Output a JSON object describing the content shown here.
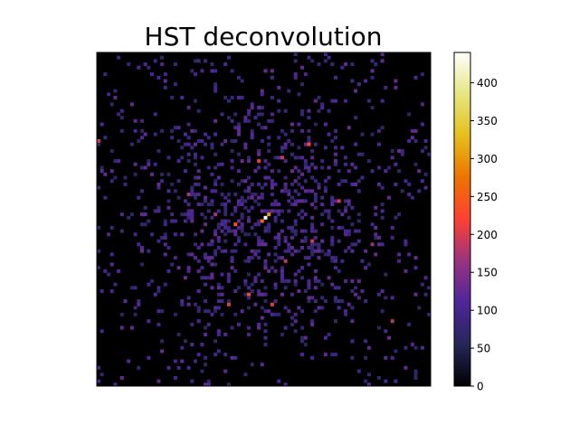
{
  "chart_data": {
    "type": "heatmap",
    "title": "HST deconvolution",
    "xlabel": "",
    "ylabel": "",
    "colormap": "CMRmap",
    "colorbar": {
      "range": [
        0,
        440
      ],
      "ticks": [
        0,
        50,
        100,
        150,
        200,
        250,
        300,
        350,
        400
      ],
      "tick_labels": [
        "0",
        "50",
        "100",
        "150",
        "200",
        "250",
        "300",
        "350",
        "400"
      ]
    },
    "grid_size": [
      100,
      100
    ],
    "background_value": 0,
    "noise_value_range": [
      60,
      130
    ],
    "peaks": [
      {
        "col": 50,
        "row": 49,
        "value": 440
      },
      {
        "col": 51,
        "row": 48,
        "value": 300
      },
      {
        "col": 49,
        "row": 50,
        "value": 260
      },
      {
        "col": 41,
        "row": 51,
        "value": 240
      },
      {
        "col": 64,
        "row": 56,
        "value": 200
      },
      {
        "col": 48,
        "row": 32,
        "value": 210
      },
      {
        "col": 63,
        "row": 27,
        "value": 220
      },
      {
        "col": 55,
        "row": 31,
        "value": 190
      },
      {
        "col": 45,
        "row": 72,
        "value": 230
      },
      {
        "col": 52,
        "row": 75,
        "value": 210
      },
      {
        "col": 39,
        "row": 75,
        "value": 200
      },
      {
        "col": 56,
        "row": 62,
        "value": 180
      },
      {
        "col": 35,
        "row": 48,
        "value": 170
      },
      {
        "col": 72,
        "row": 44,
        "value": 200
      },
      {
        "col": 27,
        "row": 42,
        "value": 170
      },
      {
        "col": 0,
        "row": 26,
        "value": 200
      },
      {
        "col": 88,
        "row": 80,
        "value": 180
      },
      {
        "col": 82,
        "row": 57,
        "value": 160
      }
    ],
    "grid": false,
    "legend": "none"
  },
  "colors": {
    "axes_frame": "#000000",
    "background": "#ffffff"
  }
}
